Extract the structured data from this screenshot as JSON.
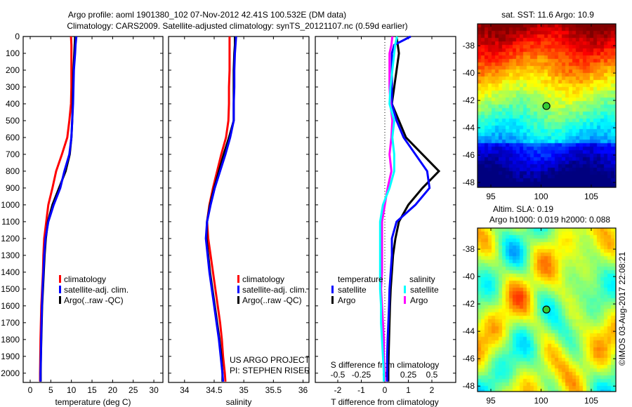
{
  "title_line1": "Argo profile: aoml 1901380_102 07-Nov-2012 42.41S 100.532E (DM data)",
  "title_line2": "Climatology: CARS2009. Satellite-adjusted climatology: synTS_20121107.nc (0.59d earlier)",
  "credit": "US ARGO PROJECT",
  "pi": "PI: STEPHEN RISER",
  "stamp": "©IMOS 03-Aug-2017 22:08:21",
  "colors": {
    "climatology": "#ff0000",
    "satellite": "#0000ff",
    "argo": "#000000",
    "s_satellite": "#00ffff",
    "s_argo": "#ff00ff"
  },
  "depth": [
    0,
    50,
    100,
    200,
    300,
    400,
    500,
    600,
    700,
    800,
    900,
    1000,
    1100,
    1200,
    1300,
    1400,
    1500,
    1600,
    1700,
    1800,
    1900,
    2000,
    2050
  ],
  "chart_data": [
    {
      "type": "line",
      "xlabel": "temperature (deg C)",
      "ylabel": "depth",
      "xlim": [
        -1.7,
        32.2
      ],
      "ylim": [
        2055,
        0
      ],
      "xticks": [
        "0",
        "5",
        "10",
        "15",
        "20",
        "25",
        "30"
      ],
      "yticks": [
        "0",
        "100",
        "200",
        "300",
        "400",
        "500",
        "600",
        "700",
        "800",
        "900",
        "1000",
        "1100",
        "1200",
        "1300",
        "1400",
        "1500",
        "1600",
        "1700",
        "1800",
        "1900",
        "2000"
      ],
      "legend": [
        "climatology",
        "satellite-adj. clim.",
        "Argo(..raw -QC)"
      ],
      "series": [
        {
          "name": "climatology",
          "values": [
            9.9,
            10.0,
            10.0,
            10.0,
            10.0,
            9.9,
            9.5,
            9.0,
            7.7,
            6.3,
            5.4,
            4.4,
            3.9,
            3.4,
            3.2,
            3.1,
            2.9,
            2.7,
            2.6,
            2.5,
            2.45,
            2.4,
            2.4
          ]
        },
        {
          "name": "satellite-adj. clim.",
          "values": [
            11.2,
            11.0,
            10.9,
            10.6,
            10.5,
            10.4,
            10.2,
            10.0,
            9.5,
            8.3,
            7.3,
            5.7,
            4.4,
            3.7,
            3.4,
            3.2,
            3.0,
            2.85,
            2.75,
            2.65,
            2.6,
            2.5,
            2.5
          ]
        },
        {
          "name": "Argo(..raw -QC)",
          "values": [
            10.9,
            10.8,
            10.7,
            10.5,
            10.4,
            10.3,
            10.2,
            10.0,
            9.6,
            8.6,
            7.0,
            5.4,
            4.3,
            3.8,
            3.5,
            3.3,
            3.1,
            2.9,
            2.8,
            2.7,
            2.6,
            2.55,
            2.55
          ]
        }
      ]
    },
    {
      "type": "line",
      "xlabel": "salinity",
      "xlim": [
        33.73,
        36.1
      ],
      "ylim": [
        2055,
        0
      ],
      "xticks": [
        "34",
        "34.5",
        "35",
        "35.5",
        "36"
      ],
      "legend": [
        "climatology",
        "satellite-adj. clim.",
        "Argo(..raw -QC)"
      ],
      "series": [
        {
          "name": "climatology",
          "values": [
            34.76,
            34.76,
            34.76,
            34.76,
            34.75,
            34.75,
            34.74,
            34.7,
            34.62,
            34.55,
            34.48,
            34.42,
            34.38,
            34.4,
            34.44,
            34.48,
            34.52,
            34.56,
            34.6,
            34.63,
            34.65,
            34.68,
            34.69
          ]
        },
        {
          "name": "satellite-adj. clim.",
          "values": [
            34.87,
            34.86,
            34.85,
            34.84,
            34.84,
            34.83,
            34.83,
            34.77,
            34.69,
            34.6,
            34.51,
            34.44,
            34.38,
            34.36,
            34.39,
            34.42,
            34.46,
            34.5,
            34.54,
            34.58,
            34.61,
            34.64,
            34.65
          ]
        },
        {
          "name": "Argo(..raw -QC)",
          "values": [
            34.85,
            34.85,
            34.84,
            34.83,
            34.83,
            34.83,
            34.83,
            34.75,
            34.66,
            34.58,
            34.5,
            34.43,
            34.38,
            34.37,
            34.4,
            34.43,
            34.47,
            34.51,
            34.55,
            34.59,
            34.62,
            34.64,
            34.64
          ]
        }
      ]
    },
    {
      "type": "line",
      "xlabel": "T difference from climatology",
      "x2label": "S difference from climatology",
      "xlim": [
        -3.0,
        3.0
      ],
      "ylim": [
        2055,
        0
      ],
      "xticks": [
        "-2",
        "-1",
        "0",
        "1",
        "2"
      ],
      "x2ticks": [
        "-0.5",
        "-0.25",
        "0",
        "0.25",
        "0.5"
      ],
      "legend_titles": [
        "temperature",
        "salinity"
      ],
      "legend": [
        "satellite",
        "Argo",
        "satellite",
        "Argo"
      ],
      "series": [
        {
          "name": "T satellite",
          "axis": "T",
          "values": [
            1.1,
            0.4,
            0.3,
            0.3,
            0.3,
            0.3,
            0.5,
            0.8,
            1.3,
            1.8,
            1.9,
            1.3,
            0.5,
            0.3,
            0.3,
            0.25,
            0.2,
            0.18,
            0.15,
            0.12,
            0.1,
            0.1,
            0.1
          ]
        },
        {
          "name": "T Argo",
          "axis": "T",
          "values": [
            0.5,
            0.55,
            0.6,
            0.5,
            0.4,
            0.3,
            0.6,
            0.9,
            1.6,
            2.3,
            1.6,
            1.0,
            0.6,
            0.45,
            0.35,
            0.3,
            0.25,
            0.22,
            0.2,
            0.18,
            0.16,
            0.15,
            0.15
          ]
        },
        {
          "name": "S satellite",
          "axis": "S",
          "values": [
            0.13,
            0.11,
            0.1,
            0.08,
            0.06,
            0.05,
            0.1,
            0.08,
            0.1,
            0.1,
            0.05,
            -0.02,
            -0.05,
            -0.05,
            -0.05,
            -0.05,
            -0.05,
            -0.04,
            -0.04,
            -0.03,
            -0.02,
            -0.01,
            -0.01
          ]
        },
        {
          "name": "S Argo",
          "axis": "S",
          "values": [
            0.08,
            0.07,
            0.05,
            0.05,
            0.05,
            0.06,
            0.08,
            0.07,
            0.05,
            0.07,
            0.03,
            0.0,
            -0.03,
            -0.03,
            -0.03,
            -0.03,
            -0.04,
            -0.03,
            -0.02,
            -0.01,
            -0.01,
            0.0,
            0.0
          ]
        }
      ]
    },
    {
      "type": "heatmap",
      "title": "sat. SST: 11.6 Argo: 10.9",
      "xlim": [
        93.67,
        107.45
      ],
      "ylim": [
        -48.36,
        -36.4
      ],
      "xticks": [
        "95",
        "100",
        "105"
      ],
      "yticks": [
        "-38",
        "-40",
        "-42",
        "-44",
        "-46",
        "-48"
      ],
      "marker": {
        "lon": 100.532,
        "lat": -42.41
      }
    },
    {
      "type": "heatmap",
      "title": "Altim. SLA: 0.19",
      "subtitle": "Argo h1000: 0.019 h2000: 0.088",
      "xlim": [
        93.67,
        107.45
      ],
      "ylim": [
        -48.4,
        -36.46
      ],
      "xticks": [
        "95",
        "100",
        "105"
      ],
      "yticks": [
        "-38",
        "-40",
        "-42",
        "-44",
        "-46",
        "-48"
      ],
      "marker": {
        "lon": 100.532,
        "lat": -42.41
      }
    }
  ]
}
